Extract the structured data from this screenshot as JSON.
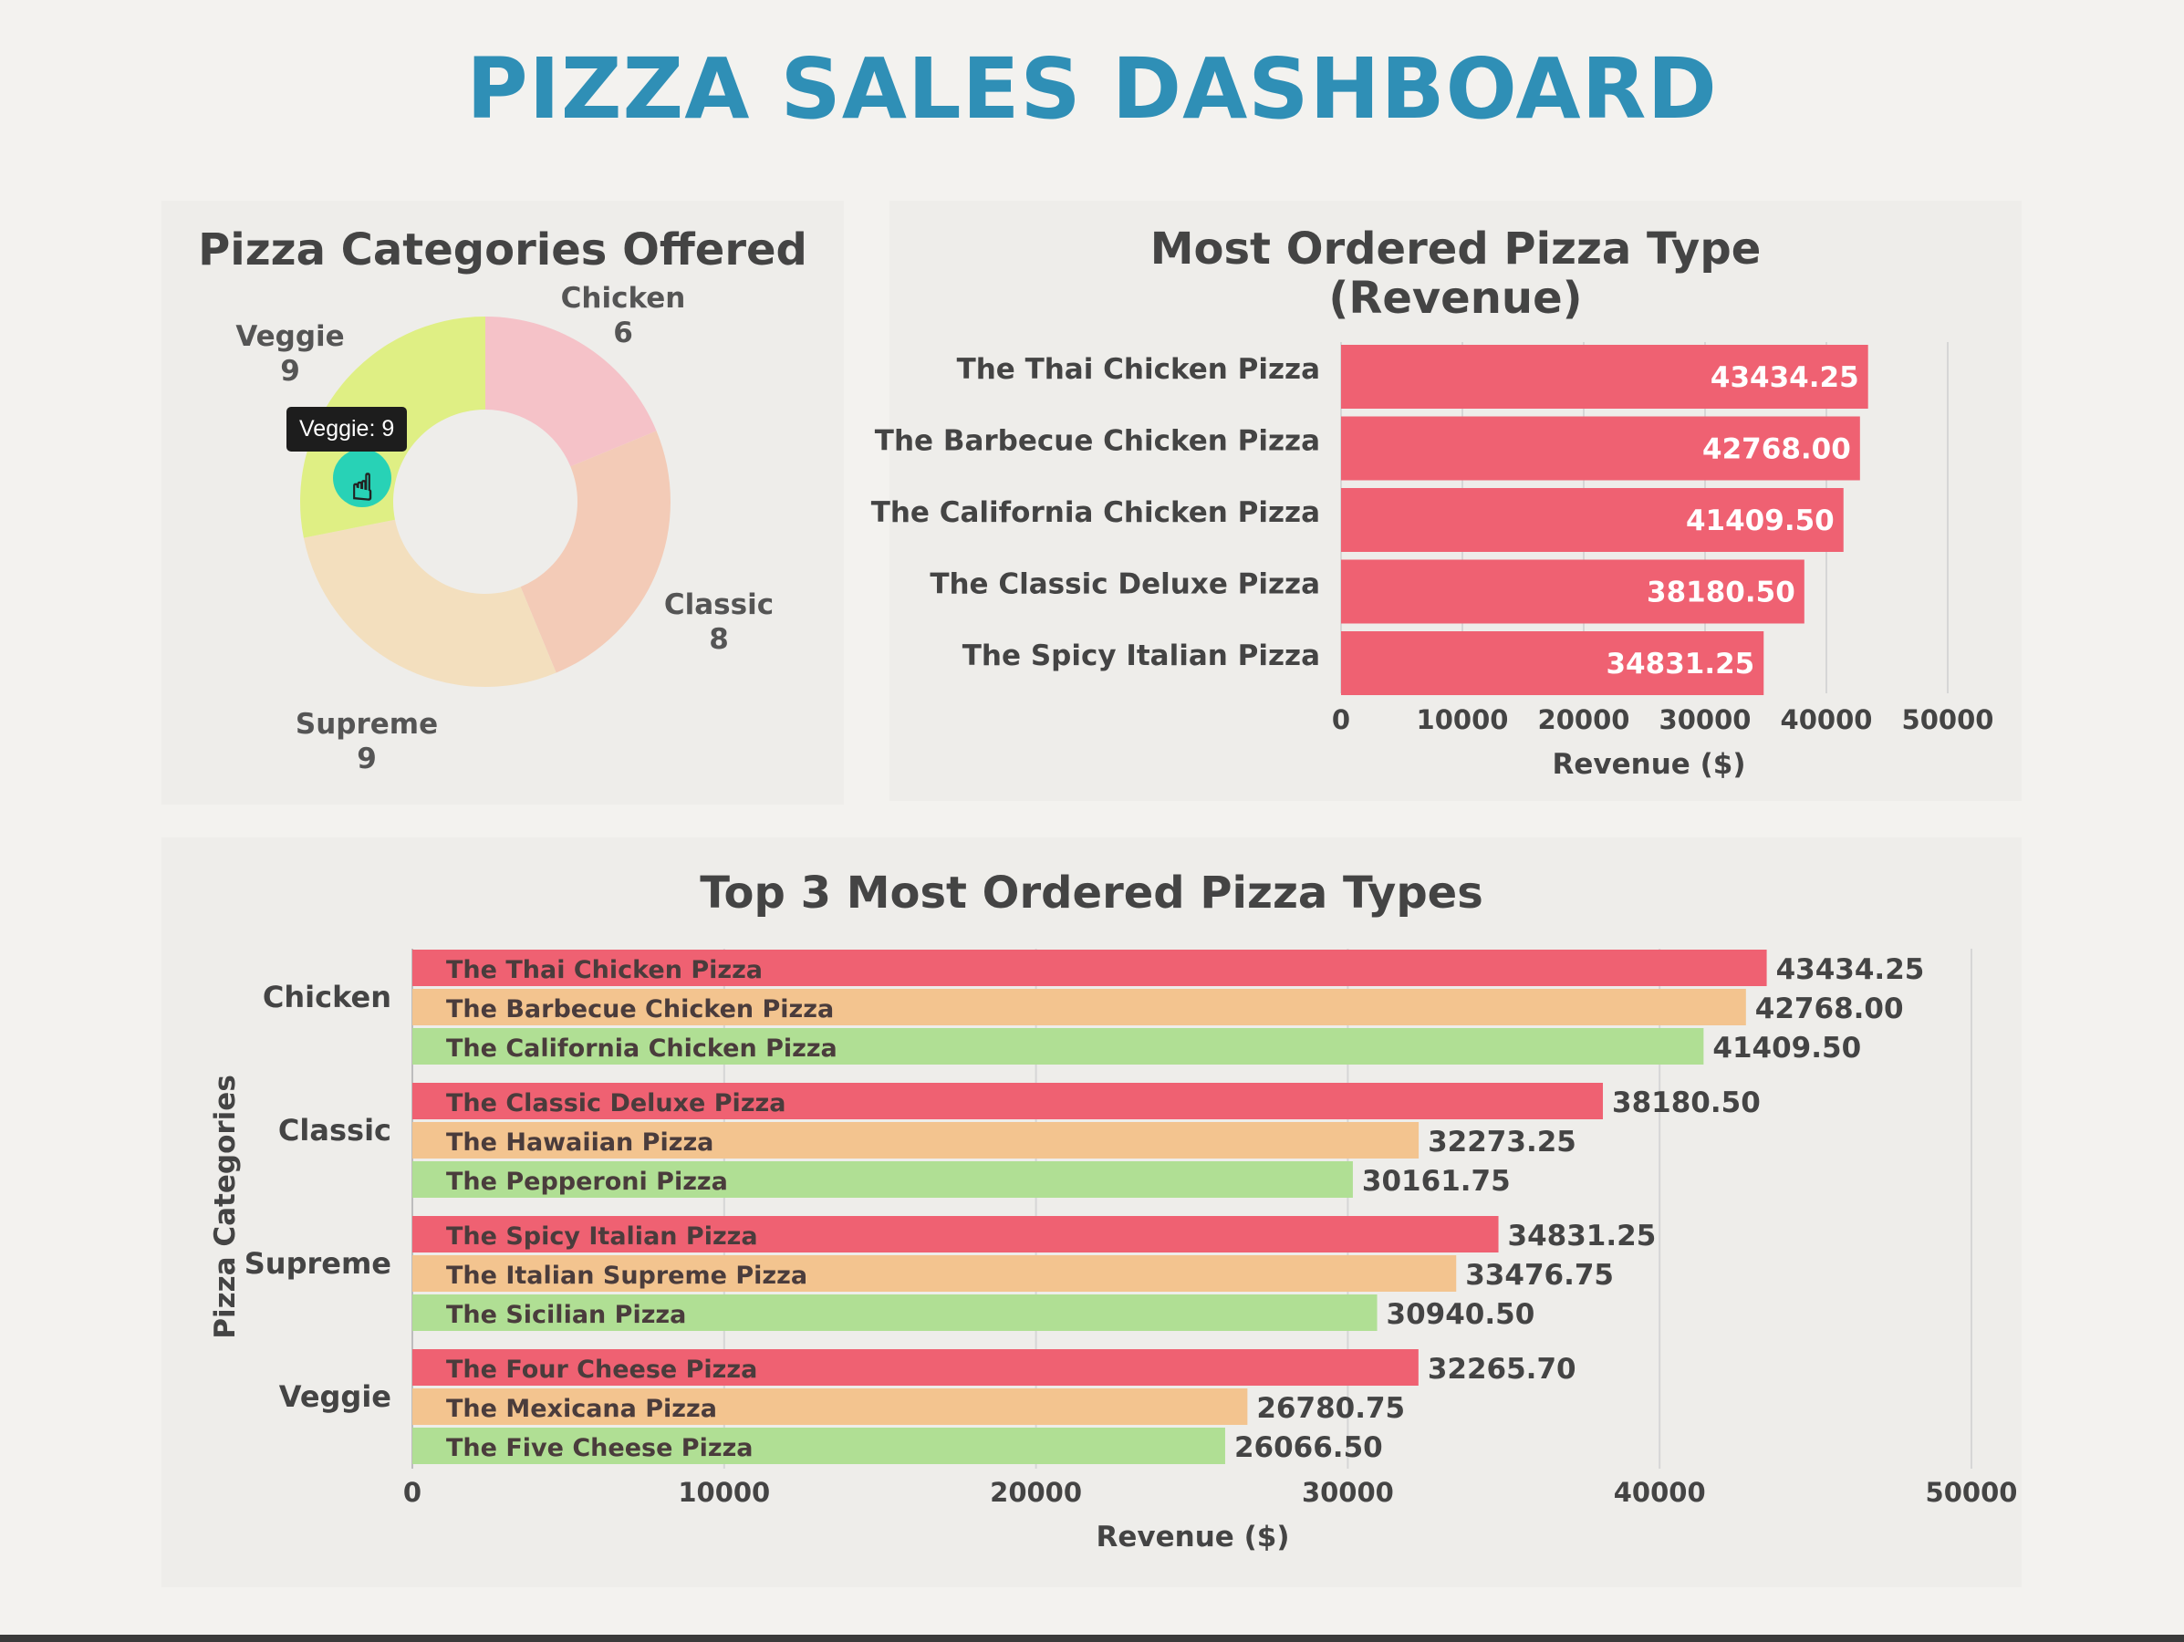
{
  "dashboard": {
    "title": "PIZZA SALES DASHBOARD"
  },
  "colors": {
    "title": "#2f8fb6",
    "rank1": "#ef6172",
    "rank2": "#f3c48f",
    "rank3": "#b0df94",
    "donut": [
      "#f5c2c8",
      "#f3cbb7",
      "#f3dfbe",
      "#dfef84"
    ],
    "tooltip_marker": "#28d2b6"
  },
  "donut_panel": {
    "title": "Pizza Categories Offered",
    "tooltip": "Veggie: 9"
  },
  "bar_panel": {
    "title_line1": "Most Ordered Pizza Type",
    "title_line2": "(Revenue)"
  },
  "grouped_panel": {
    "title": "Top 3 Most Ordered Pizza Types"
  },
  "chart_data": [
    {
      "type": "pie",
      "style": "donut",
      "title": "Pizza Categories Offered",
      "categories": [
        "Chicken",
        "Classic",
        "Supreme",
        "Veggie"
      ],
      "values": [
        6,
        8,
        9,
        9
      ],
      "highlighted": "Veggie"
    },
    {
      "type": "bar",
      "orientation": "horizontal",
      "title": "Most Ordered Pizza Type (Revenue)",
      "categories": [
        "The Thai Chicken Pizza",
        "The Barbecue Chicken Pizza",
        "The California Chicken Pizza",
        "The Classic Deluxe Pizza",
        "The Spicy Italian Pizza"
      ],
      "values": [
        43434.25,
        42768.0,
        41409.5,
        38180.5,
        34831.25
      ],
      "labels": [
        "43434.25",
        "42768.00",
        "41409.50",
        "38180.50",
        "34831.25"
      ],
      "xlabel": "Revenue ($)",
      "ylabel": "",
      "xlim": [
        0,
        50000
      ],
      "xticks": [
        "0",
        "10000",
        "20000",
        "30000",
        "40000",
        "50000"
      ],
      "grid": "vertical"
    },
    {
      "type": "bar",
      "orientation": "horizontal",
      "title": "Top 3 Most Ordered Pizza Types",
      "xlabel": "Revenue ($)",
      "ylabel": "Pizza Categories",
      "xlim": [
        0,
        50000
      ],
      "xticks": [
        "0",
        "10000",
        "20000",
        "30000",
        "40000",
        "50000"
      ],
      "grid": "vertical",
      "groups": [
        {
          "category": "Chicken",
          "items": [
            {
              "name": "The Thai Chicken Pizza",
              "value": 43434.25,
              "label": "43434.25"
            },
            {
              "name": "The Barbecue Chicken Pizza",
              "value": 42768.0,
              "label": "42768.00"
            },
            {
              "name": "The California Chicken Pizza",
              "value": 41409.5,
              "label": "41409.50"
            }
          ]
        },
        {
          "category": "Classic",
          "items": [
            {
              "name": "The Classic Deluxe Pizza",
              "value": 38180.5,
              "label": "38180.50"
            },
            {
              "name": "The Hawaiian Pizza",
              "value": 32273.25,
              "label": "32273.25"
            },
            {
              "name": "The Pepperoni Pizza",
              "value": 30161.75,
              "label": "30161.75"
            }
          ]
        },
        {
          "category": "Supreme",
          "items": [
            {
              "name": "The Spicy Italian Pizza",
              "value": 34831.25,
              "label": "34831.25"
            },
            {
              "name": "The Italian Supreme Pizza",
              "value": 33476.75,
              "label": "33476.75"
            },
            {
              "name": "The Sicilian Pizza",
              "value": 30940.5,
              "label": "30940.50"
            }
          ]
        },
        {
          "category": "Veggie",
          "items": [
            {
              "name": "The Four Cheese Pizza",
              "value": 32265.7,
              "label": "32265.70"
            },
            {
              "name": "The Mexicana Pizza",
              "value": 26780.75,
              "label": "26780.75"
            },
            {
              "name": "The Five Cheese Pizza",
              "value": 26066.5,
              "label": "26066.50"
            }
          ]
        }
      ]
    }
  ]
}
